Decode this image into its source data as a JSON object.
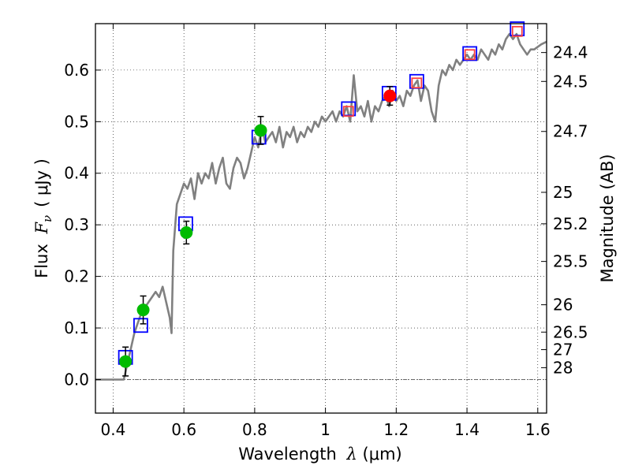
{
  "chart_data": {
    "type": "scatter",
    "xlabel": {
      "text": "Wavelength",
      "symbol": "λ",
      "unit": "(μm)"
    },
    "ylabel": {
      "text": "Flux",
      "symbol": "F",
      "subscript": "ν",
      "unit": "( μJy )"
    },
    "y2label": "Magnitude (AB)",
    "xlim": [
      0.35,
      1.625
    ],
    "ylim": [
      -0.065,
      0.69
    ],
    "grid": true,
    "x_ticks": [
      {
        "value": 0.4,
        "label": "0.4"
      },
      {
        "value": 0.6,
        "label": "0.6"
      },
      {
        "value": 0.8,
        "label": "0.8"
      },
      {
        "value": 1.0,
        "label": "1"
      },
      {
        "value": 1.2,
        "label": "1.2"
      },
      {
        "value": 1.4,
        "label": "1.4"
      },
      {
        "value": 1.6,
        "label": "1.6"
      }
    ],
    "y_ticks": [
      {
        "value": 0.0,
        "label": "0.0"
      },
      {
        "value": 0.1,
        "label": "0.1"
      },
      {
        "value": 0.2,
        "label": "0.2"
      },
      {
        "value": 0.3,
        "label": "0.3"
      },
      {
        "value": 0.4,
        "label": "0.4"
      },
      {
        "value": 0.5,
        "label": "0.5"
      },
      {
        "value": 0.6,
        "label": "0.6"
      }
    ],
    "magnitude_ticks": [
      {
        "value": 0.634,
        "label": "24.4"
      },
      {
        "value": 0.578,
        "label": "24.5"
      },
      {
        "value": 0.481,
        "label": "24.7"
      },
      {
        "value": 0.363,
        "label": "25"
      },
      {
        "value": 0.302,
        "label": "25.2"
      },
      {
        "value": 0.229,
        "label": "25.5"
      },
      {
        "value": 0.145,
        "label": "26"
      },
      {
        "value": 0.092,
        "label": "26.5"
      },
      {
        "value": 0.058,
        "label": "27"
      },
      {
        "value": 0.023,
        "label": "28"
      }
    ],
    "zero_line": 0.0,
    "series": [
      {
        "name": "model-spectrum",
        "style": "line",
        "color": "#808080",
        "x": [
          0.35,
          0.43,
          0.44,
          0.45,
          0.46,
          0.47,
          0.48,
          0.49,
          0.5,
          0.51,
          0.52,
          0.53,
          0.54,
          0.55,
          0.56,
          0.565,
          0.57,
          0.58,
          0.59,
          0.6,
          0.61,
          0.62,
          0.63,
          0.64,
          0.65,
          0.66,
          0.67,
          0.68,
          0.69,
          0.7,
          0.71,
          0.72,
          0.73,
          0.74,
          0.75,
          0.76,
          0.77,
          0.78,
          0.79,
          0.8,
          0.81,
          0.82,
          0.83,
          0.84,
          0.85,
          0.86,
          0.87,
          0.88,
          0.89,
          0.9,
          0.91,
          0.92,
          0.93,
          0.94,
          0.95,
          0.96,
          0.97,
          0.98,
          0.99,
          1.0,
          1.01,
          1.02,
          1.03,
          1.04,
          1.05,
          1.06,
          1.07,
          1.08,
          1.09,
          1.1,
          1.11,
          1.12,
          1.13,
          1.14,
          1.15,
          1.16,
          1.17,
          1.18,
          1.19,
          1.2,
          1.21,
          1.22,
          1.23,
          1.24,
          1.25,
          1.26,
          1.27,
          1.28,
          1.29,
          1.3,
          1.31,
          1.32,
          1.33,
          1.34,
          1.35,
          1.36,
          1.37,
          1.38,
          1.39,
          1.4,
          1.41,
          1.42,
          1.43,
          1.44,
          1.45,
          1.46,
          1.47,
          1.48,
          1.49,
          1.5,
          1.51,
          1.52,
          1.53,
          1.54,
          1.55,
          1.56,
          1.57,
          1.58,
          1.59,
          1.6,
          1.61,
          1.625
        ],
        "y": [
          0.0,
          0.0,
          0.03,
          0.06,
          0.09,
          0.11,
          0.13,
          0.14,
          0.15,
          0.16,
          0.17,
          0.16,
          0.18,
          0.15,
          0.12,
          0.09,
          0.25,
          0.34,
          0.36,
          0.38,
          0.37,
          0.39,
          0.35,
          0.4,
          0.38,
          0.4,
          0.39,
          0.42,
          0.38,
          0.41,
          0.43,
          0.38,
          0.37,
          0.41,
          0.43,
          0.42,
          0.39,
          0.41,
          0.44,
          0.47,
          0.45,
          0.49,
          0.46,
          0.47,
          0.48,
          0.46,
          0.49,
          0.45,
          0.48,
          0.47,
          0.49,
          0.46,
          0.48,
          0.47,
          0.49,
          0.48,
          0.5,
          0.49,
          0.51,
          0.5,
          0.51,
          0.52,
          0.5,
          0.52,
          0.51,
          0.53,
          0.5,
          0.59,
          0.52,
          0.53,
          0.51,
          0.54,
          0.5,
          0.53,
          0.52,
          0.54,
          0.55,
          0.53,
          0.56,
          0.54,
          0.55,
          0.53,
          0.56,
          0.55,
          0.57,
          0.58,
          0.54,
          0.57,
          0.56,
          0.52,
          0.5,
          0.57,
          0.6,
          0.59,
          0.61,
          0.6,
          0.62,
          0.61,
          0.62,
          0.63,
          0.62,
          0.63,
          0.62,
          0.64,
          0.63,
          0.62,
          0.64,
          0.63,
          0.65,
          0.64,
          0.66,
          0.67,
          0.66,
          0.67,
          0.65,
          0.64,
          0.63,
          0.64,
          0.64,
          0.645,
          0.65,
          0.655
        ]
      },
      {
        "name": "model-photometry",
        "style": "open-square",
        "stroke": "#0000ff",
        "x": [
          0.435,
          0.478,
          0.605,
          0.812,
          1.065,
          1.18,
          1.258,
          1.408,
          1.542
        ],
        "y": [
          0.043,
          0.105,
          0.302,
          0.47,
          0.525,
          0.555,
          0.578,
          0.632,
          0.68
        ]
      },
      {
        "name": "model-photometry-inner",
        "style": "open-square-small",
        "stroke": "#ff4040",
        "x": [
          1.065,
          1.258,
          1.408,
          1.542
        ],
        "y": [
          0.52,
          0.575,
          0.63,
          0.675
        ]
      },
      {
        "name": "observed-green",
        "style": "filled-circle",
        "fill": "#00bb00",
        "x": [
          0.435,
          0.485,
          0.607,
          0.817
        ],
        "y": [
          0.035,
          0.135,
          0.285,
          0.483
        ],
        "err": [
          0.028,
          0.027,
          0.022,
          0.027
        ]
      },
      {
        "name": "observed-red",
        "style": "filled-circle",
        "fill": "#ff0000",
        "x": [
          1.182
        ],
        "y": [
          0.55
        ],
        "err": [
          0.018
        ]
      }
    ]
  }
}
